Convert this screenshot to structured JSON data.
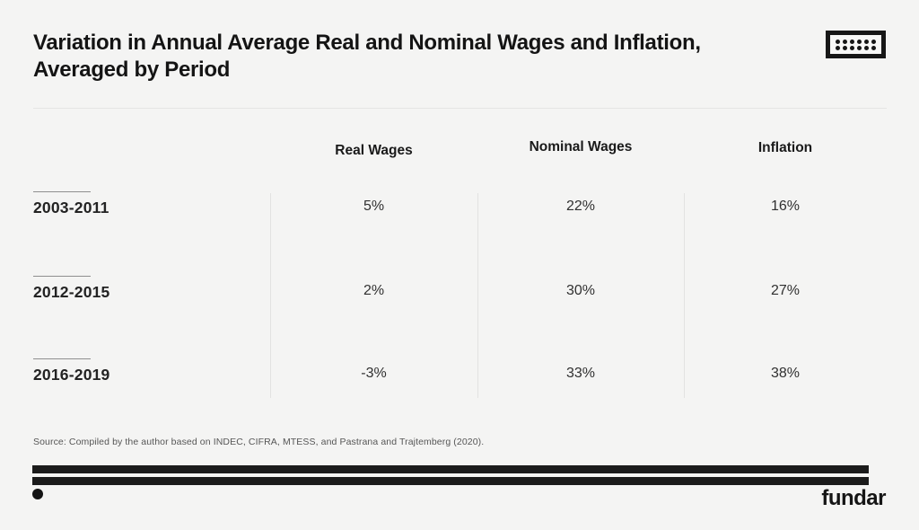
{
  "page": {
    "background": "#f4f4f3",
    "ink": "#171717",
    "rule_color": "#e4e4e3",
    "divider_color": "#e2e2e1"
  },
  "header": {
    "title_line1": "Variation in Annual Average Real and Nominal Wages and Inflation,",
    "title_line2": "Averaged by Period",
    "logo_icon": "table-dots-icon"
  },
  "chart_data": {
    "type": "table",
    "title": "Variation in Annual Average Real and Nominal Wages and Inflation, Averaged by Period",
    "columns": [
      "Real Wages",
      "Nominal Wages",
      "Inflation"
    ],
    "rows": [
      {
        "period": "2003-2011",
        "real_wages": "5%",
        "nominal_wages": "22%",
        "inflation": "16%"
      },
      {
        "period": "2012-2015",
        "real_wages": "2%",
        "nominal_wages": "30%",
        "inflation": "27%"
      },
      {
        "period": "2016-2019",
        "real_wages": "-3%",
        "nominal_wages": "33%",
        "inflation": "38%"
      }
    ],
    "units": "%",
    "values_numeric": {
      "categories": [
        "2003-2011",
        "2012-2015",
        "2016-2019"
      ],
      "series": [
        {
          "name": "Real Wages",
          "values": [
            5,
            2,
            -3
          ]
        },
        {
          "name": "Nominal Wages",
          "values": [
            22,
            30,
            33
          ]
        },
        {
          "name": "Inflation",
          "values": [
            16,
            27,
            38
          ]
        }
      ]
    }
  },
  "footer": {
    "source": "Source: Compiled by the author based  on INDEC, CIFRA, MTESS, and Pastrana and Trajtemberg (2020).",
    "brand": "fundar"
  }
}
